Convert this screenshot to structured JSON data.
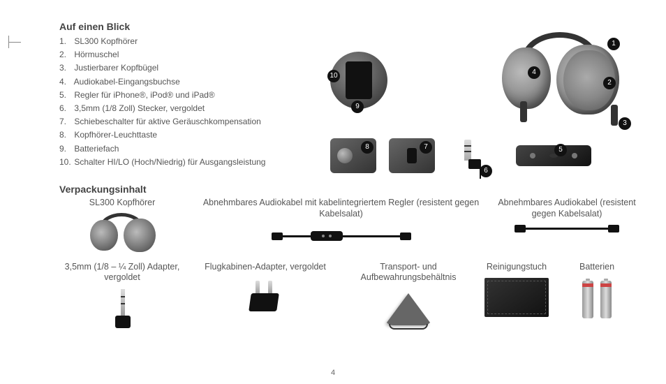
{
  "title": "Auf einen Blick",
  "list": [
    "SL300 Kopfhörer",
    "Hörmuschel",
    "Justierbarer Kopfbügel",
    "Audiokabel-Eingangsbuchse",
    "Regler für iPhone®, iPod® und iPad®",
    "3,5mm (1/8 Zoll) Stecker, vergoldet",
    "Schiebeschalter für aktive Geräuschkompensation",
    "Kopfhörer-Leuchttaste",
    "Batteriefach",
    "Schalter HI/LO (Hoch/Niedrig) für  Ausgangsleistung"
  ],
  "packTitle": "Verpackungsinhalt",
  "pack": {
    "hp": "SL300 Kopfhörer",
    "cable1": "Abnehmbares Audiokabel mit kabelintegriertem Regler (resistent gegen Kabelsalat)",
    "cable2": "Abnehmbares Audiokabel (resistent gegen Kabelsalat)",
    "adapter": "3,5mm (1/8  – ¼ Zoll) Adapter, vergoldet",
    "airplane": "Flugkabinen-Adapter, vergoldet",
    "bag": "Transport- und Aufbewahrungsbehältnis",
    "cloth": "Reinigungstuch",
    "batt": "Batterien"
  },
  "pageNum": "4",
  "callouts": [
    "1",
    "2",
    "3",
    "4",
    "5",
    "6",
    "7",
    "8",
    "9",
    "10"
  ]
}
